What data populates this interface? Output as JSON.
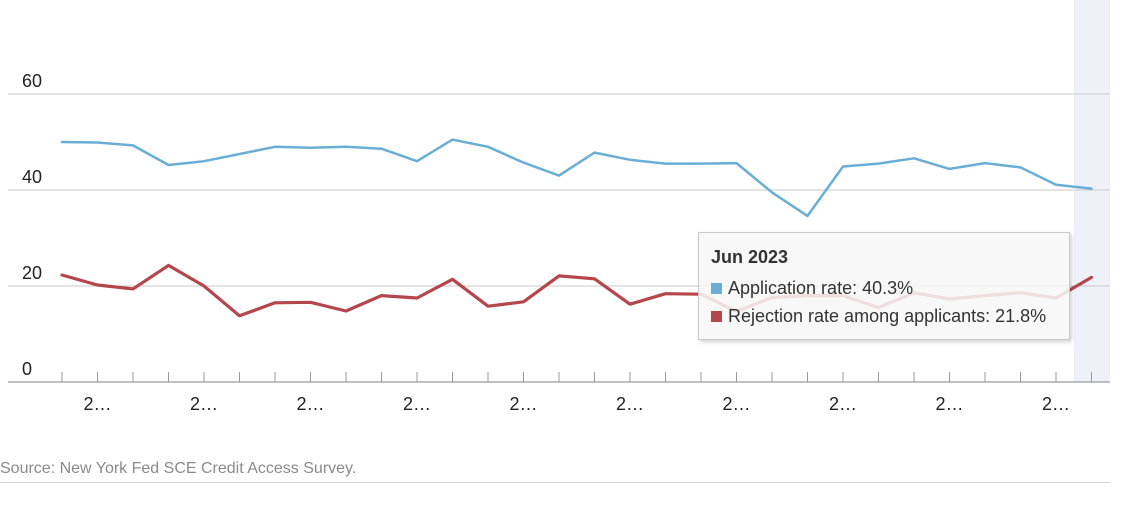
{
  "chart_data": {
    "type": "line",
    "title": "",
    "xlabel": "",
    "ylabel": "",
    "ylim": [
      0,
      75
    ],
    "y_ticks": [
      0,
      20,
      40,
      60
    ],
    "x_tick_labels": [
      "2…",
      "2…",
      "2…",
      "2…",
      "2…",
      "2…",
      "2…",
      "2…",
      "2…",
      "2…"
    ],
    "grid": true,
    "highlighted_period": "Jun 2023",
    "series": [
      {
        "name": "Application rate",
        "color": "#6aaed6",
        "values": [
          50.0,
          49.9,
          49.3,
          45.2,
          46.0,
          47.5,
          49.0,
          48.8,
          49.0,
          48.6,
          46.0,
          50.5,
          49.0,
          45.7,
          43.0,
          47.8,
          46.3,
          45.5,
          45.5,
          45.6,
          39.5,
          34.6,
          44.9,
          45.5,
          46.6,
          44.4,
          45.6,
          44.7,
          41.1,
          40.3
        ]
      },
      {
        "name": "Rejection rate among applicants",
        "color": "#b5464b",
        "values": [
          22.3,
          20.2,
          19.4,
          24.3,
          20.0,
          13.8,
          16.5,
          16.6,
          14.8,
          18.0,
          17.5,
          21.4,
          15.8,
          16.7,
          22.1,
          21.5,
          16.2,
          18.4,
          18.3,
          14.7,
          17.6,
          18.0,
          18.0,
          15.5,
          18.6,
          17.3,
          18.0,
          18.6,
          17.5,
          21.8
        ]
      }
    ]
  },
  "tooltip": {
    "title": "Jun 2023",
    "rows": [
      {
        "text": "Application rate: 40.3%",
        "color": "#6aaed6"
      },
      {
        "text": "Rejection rate among applicants: 21.8%",
        "color": "#b5464b"
      }
    ]
  },
  "source": "Source: New York Fed SCE Credit Access Survey."
}
